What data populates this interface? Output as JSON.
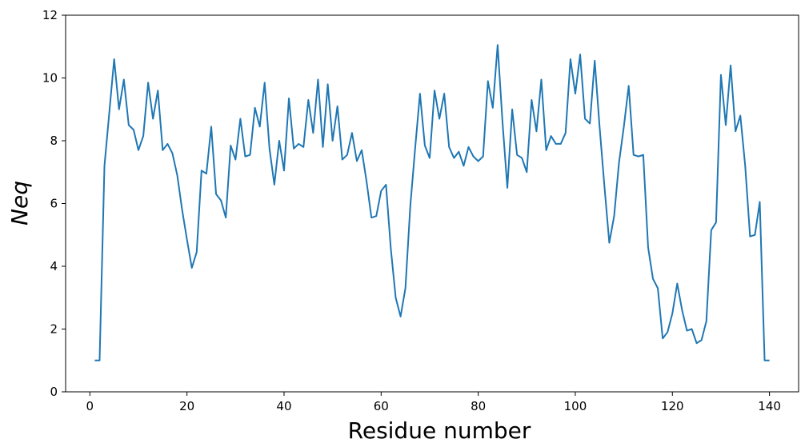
{
  "chart_data": {
    "type": "line",
    "xlabel": "Residue number",
    "ylabel": "Neq",
    "xlim": [
      -5,
      146
    ],
    "ylim": [
      0,
      12
    ],
    "xticks": [
      0,
      20,
      40,
      60,
      80,
      100,
      120,
      140
    ],
    "yticks": [
      0,
      2,
      4,
      6,
      8,
      10,
      12
    ],
    "grid": false,
    "line_color": "#1f77b4",
    "series": [
      {
        "x": [
          1,
          2,
          3,
          4,
          5,
          6,
          7,
          8,
          9,
          10,
          11,
          12,
          13,
          14,
          15,
          16,
          17,
          18,
          19,
          20,
          21,
          22,
          23,
          24,
          25,
          26,
          27,
          28,
          29,
          30,
          31,
          32,
          33,
          34,
          35,
          36,
          37,
          38,
          39,
          40,
          41,
          42,
          43,
          44,
          45,
          46,
          47,
          48,
          49,
          50,
          51,
          52,
          53,
          54,
          55,
          56,
          57,
          58,
          59,
          60,
          61,
          62,
          63,
          64,
          65,
          66,
          67,
          68,
          69,
          70,
          71,
          72,
          73,
          74,
          75,
          76,
          77,
          78,
          79,
          80,
          81,
          82,
          83,
          84,
          85,
          86,
          87,
          88,
          89,
          90,
          91,
          92,
          93,
          94,
          95,
          96,
          97,
          98,
          99,
          100,
          101,
          102,
          103,
          104,
          105,
          106,
          107,
          108,
          109,
          110,
          111,
          112,
          113,
          114,
          115,
          116,
          117,
          118,
          119,
          120,
          121,
          122,
          123,
          124,
          125,
          126,
          127,
          128,
          129,
          130,
          131,
          132,
          133,
          134,
          135,
          136,
          137,
          138,
          139,
          140
        ],
        "y": [
          1.0,
          1.0,
          7.2,
          8.9,
          10.6,
          9.0,
          9.95,
          8.5,
          8.35,
          7.7,
          8.15,
          9.85,
          8.7,
          9.6,
          7.7,
          7.9,
          7.6,
          6.9,
          5.8,
          4.85,
          3.95,
          4.45,
          7.05,
          6.95,
          8.45,
          6.3,
          6.1,
          5.55,
          7.85,
          7.4,
          8.7,
          7.5,
          7.55,
          9.05,
          8.45,
          9.85,
          7.75,
          6.6,
          8.0,
          7.05,
          9.35,
          7.75,
          7.9,
          7.8,
          9.3,
          8.25,
          9.95,
          7.8,
          9.8,
          8.0,
          9.1,
          7.4,
          7.55,
          8.25,
          7.35,
          7.7,
          6.7,
          5.55,
          5.6,
          6.4,
          6.6,
          4.55,
          3.0,
          2.4,
          3.3,
          5.9,
          7.75,
          9.5,
          7.85,
          7.45,
          9.6,
          8.7,
          9.5,
          7.8,
          7.45,
          7.65,
          7.2,
          7.8,
          7.5,
          7.35,
          7.5,
          9.9,
          9.05,
          11.05,
          8.6,
          6.5,
          9.0,
          7.55,
          7.45,
          7.0,
          9.3,
          8.3,
          9.95,
          7.7,
          8.15,
          7.9,
          7.9,
          8.25,
          10.6,
          9.5,
          10.75,
          8.7,
          8.55,
          10.55,
          8.45,
          6.55,
          4.75,
          5.6,
          7.3,
          8.45,
          9.75,
          7.55,
          7.5,
          7.55,
          4.6,
          3.6,
          3.3,
          1.7,
          1.9,
          2.5,
          3.45,
          2.6,
          1.95,
          2.0,
          1.55,
          1.65,
          2.25,
          5.15,
          5.4,
          10.1,
          8.5,
          10.4,
          8.3,
          8.8,
          7.2,
          4.95,
          5.0,
          6.05,
          1.0,
          1.0
        ]
      }
    ]
  }
}
